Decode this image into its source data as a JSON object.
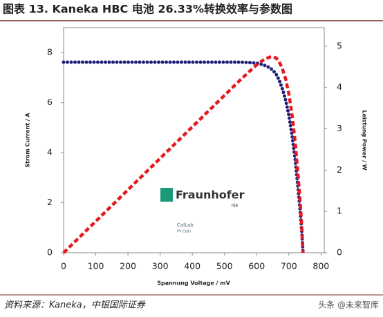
{
  "header": {
    "title": "图表 13. Kaneka HBC 电池 26.33%转换效率与参数图"
  },
  "chart_data": {
    "type": "line",
    "x_label": "Spannung Voltage / mV",
    "y_label": "Strom Current / A",
    "y2_label": "Leistung Power / W",
    "x": [
      0,
      50,
      100,
      150,
      200,
      250,
      300,
      350,
      400,
      450,
      500,
      550,
      580,
      600,
      620,
      640,
      650,
      660,
      670,
      680,
      690,
      700,
      710,
      720,
      730,
      735,
      740,
      744
    ],
    "series": [
      {
        "color": "#1f1f7a",
        "axis": "y",
        "values": [
          7.62,
          7.62,
          7.62,
          7.62,
          7.62,
          7.62,
          7.62,
          7.62,
          7.62,
          7.62,
          7.62,
          7.62,
          7.6,
          7.58,
          7.52,
          7.4,
          7.3,
          7.15,
          6.9,
          6.55,
          6.1,
          5.5,
          4.7,
          3.7,
          2.4,
          1.7,
          0.9,
          0
        ]
      },
      {
        "color": "#e8171f",
        "axis": "y2",
        "values": [
          0,
          0.381,
          0.762,
          1.143,
          1.524,
          1.905,
          2.286,
          2.667,
          3.048,
          3.429,
          3.81,
          4.191,
          4.408,
          4.548,
          4.662,
          4.736,
          4.745,
          4.719,
          4.623,
          4.454,
          4.209,
          3.85,
          3.337,
          2.664,
          1.752,
          1.25,
          0.666,
          0
        ]
      }
    ],
    "xlim": [
      0,
      810
    ],
    "xticks": [
      0,
      100,
      200,
      300,
      400,
      500,
      600,
      700,
      800
    ],
    "ylim": [
      0,
      9
    ],
    "yticks": [
      0,
      2,
      4,
      6,
      8
    ],
    "y2lim": [
      0,
      5.45
    ],
    "y2ticks": [
      0,
      1,
      2,
      3,
      4,
      5
    ],
    "annotations": [
      "Fraunhofer",
      "ISE",
      "CalLab",
      "PV Cells"
    ]
  },
  "footer": {
    "source": "资料来源：Kaneka，中银国际证券",
    "watermark": "头条 @未来智库"
  }
}
